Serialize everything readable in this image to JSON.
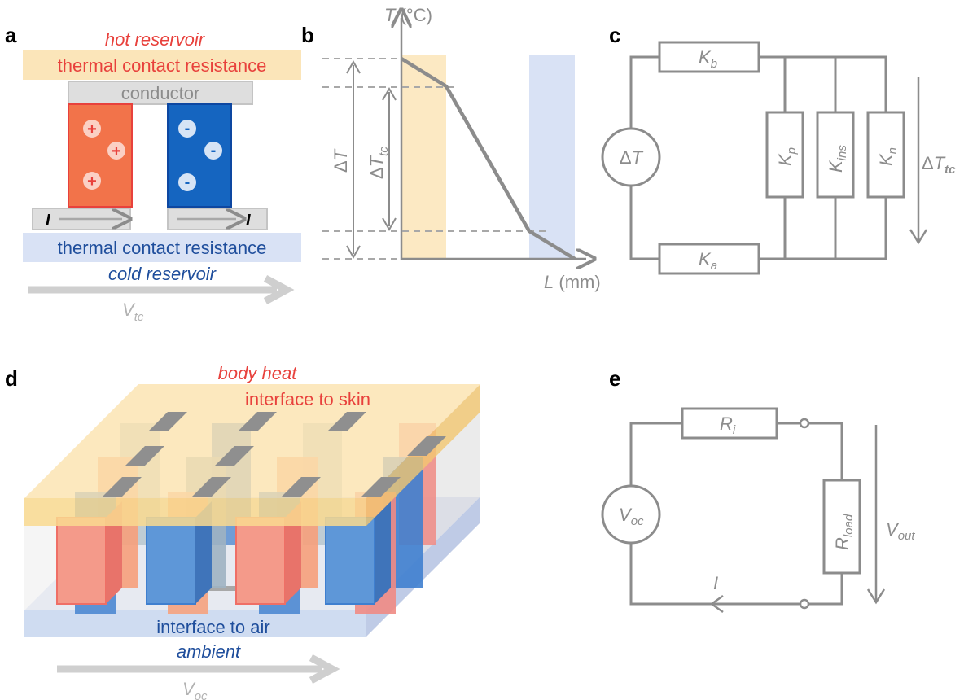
{
  "panels": {
    "a": {
      "letter": "a",
      "hot": "hot reservoir",
      "tcr_top": "thermal contact resistance",
      "conductor": "conductor",
      "plus": "+",
      "minus": "-",
      "current": "I",
      "tcr_bottom": "thermal contact resistance",
      "cold": "cold reservoir",
      "voltage_v": "V",
      "voltage_sub": "tc"
    },
    "b": {
      "letter": "b",
      "y_axis_main": "T",
      "y_axis_unit": " (°C)",
      "x_axis_main": "L",
      "x_axis_unit": " (mm)",
      "delta": "Δ",
      "dT": "T",
      "dTtc_sub": "tc"
    },
    "c": {
      "letter": "c",
      "source_delta": "Δ",
      "source_T": "T",
      "K": "K",
      "kb_sub": "b",
      "ka_sub": "a",
      "kp_sub": "p",
      "kins_sub": "ins",
      "kn_sub": "n",
      "out_delta": "Δ",
      "out_T": "T",
      "out_sub": "tc"
    },
    "d": {
      "letter": "d",
      "body_heat": "body heat",
      "skin": "interface to skin",
      "air": "interface to air",
      "ambient": "ambient",
      "voltage_v": "V",
      "voltage_sub": "oc"
    },
    "e": {
      "letter": "e",
      "source_v": "V",
      "source_sub": "oc",
      "ri_r": "R",
      "ri_sub": "i",
      "rload_r": "R",
      "rload_sub": "load",
      "vout_v": "V",
      "vout_sub": "out",
      "current": "I"
    }
  },
  "colors": {
    "hot_red": "#e8413c",
    "cold_blue": "#1f4e9c",
    "p_type": "#f2734a",
    "n_type": "#1565c0",
    "tcr_top_fill": "#fbe5b9",
    "tcr_bottom_fill": "#d9e2f5",
    "wire_gray": "#8c8c8c"
  }
}
